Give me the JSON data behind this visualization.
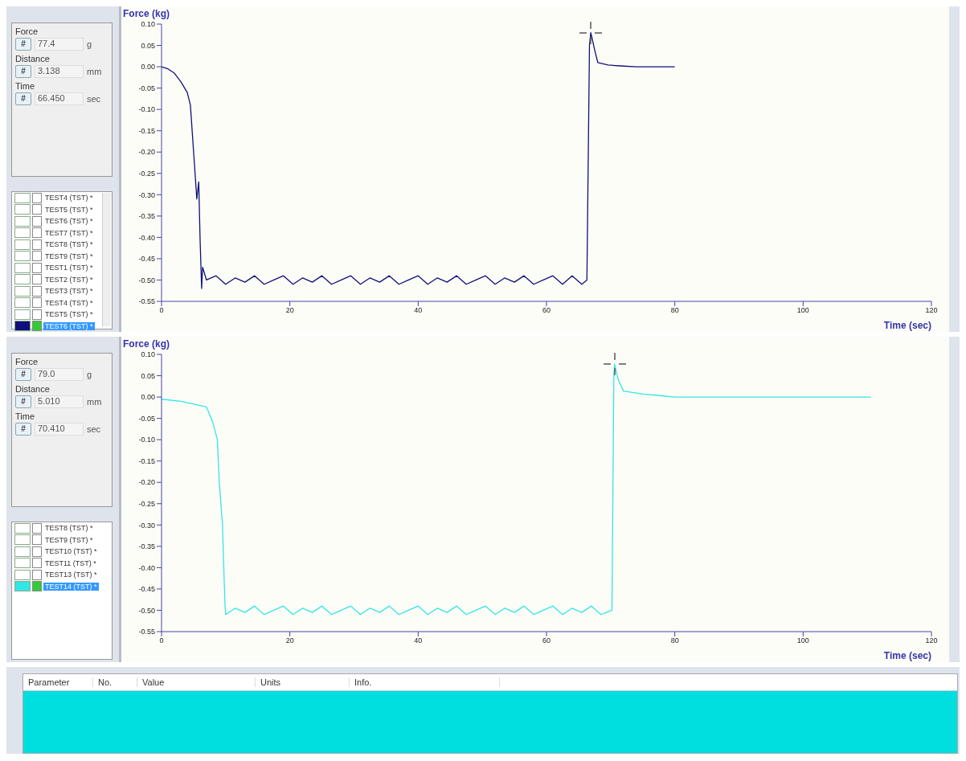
{
  "chart_data": [
    {
      "type": "line",
      "ylabel": "Force (kg)",
      "xlabel": "Time (sec)",
      "xlim": [
        0,
        120
      ],
      "xticks": [
        0,
        20,
        40,
        60,
        80,
        100,
        120
      ],
      "ylim": [
        -0.55,
        0.1
      ],
      "yticks": [
        {
          "value": 0.1,
          "label": "0.10"
        },
        0.05,
        {
          "value": 0,
          "label": "0.00"
        },
        -0.05,
        {
          "value": -0.1,
          "label": "-0.10"
        },
        -0.15,
        {
          "value": -0.2,
          "label": "-0.20"
        },
        -0.25,
        {
          "value": -0.3,
          "label": "-0.30"
        },
        -0.35,
        {
          "value": -0.4,
          "label": "-0.40"
        },
        -0.45,
        {
          "value": -0.5,
          "label": "-0.50"
        },
        -0.55
      ],
      "annotations": [
        "Force",
        "#",
        "77.4",
        "g",
        "Distance",
        "#",
        "3.138",
        "mm",
        "Time",
        "#",
        "66.450",
        "sec",
        "TEST4 (TST) *",
        "TEST5 (TST) *",
        "TEST6 (TST) *",
        "TEST7 (TST) *",
        "TEST8 (TST) *",
        "TEST9 (TST) *",
        "TEST1 (TST) *",
        "TEST2 (TST) *",
        "TEST3 (TST) *",
        "TEST4 (TST) *",
        "TEST5 (TST) *",
        "TEST6 (TST) *"
      ],
      "x": [
        0,
        1,
        2,
        3,
        4,
        4.5,
        5,
        5.5,
        5.8,
        6,
        6.25,
        6.4,
        7,
        8.5,
        10,
        11.5,
        13,
        14.5,
        16,
        17.5,
        19,
        20.5,
        22,
        23.5,
        25,
        26.5,
        28,
        29.5,
        31,
        32.5,
        34,
        35.5,
        37,
        38.5,
        40,
        41.5,
        43,
        44.5,
        46,
        47.5,
        49,
        50.5,
        52,
        53.5,
        55,
        56.5,
        58,
        59.5,
        61,
        62.5,
        64,
        65.5,
        66.3,
        66.7,
        66.9,
        67.1,
        67.5,
        68,
        69.6,
        71.5,
        74,
        80
      ],
      "series": [
        {
          "color": "#10107a",
          "values": [
            0,
            -0.005,
            -0.015,
            -0.035,
            -0.06,
            -0.09,
            -0.2,
            -0.31,
            -0.27,
            -0.4,
            -0.52,
            -0.47,
            -0.5,
            -0.49,
            -0.51,
            -0.495,
            -0.505,
            -0.49,
            -0.51,
            -0.5,
            -0.49,
            -0.51,
            -0.495,
            -0.505,
            -0.49,
            -0.51,
            -0.5,
            -0.49,
            -0.51,
            -0.495,
            -0.505,
            -0.49,
            -0.51,
            -0.5,
            -0.49,
            -0.51,
            -0.495,
            -0.505,
            -0.49,
            -0.51,
            -0.5,
            -0.49,
            -0.51,
            -0.495,
            -0.505,
            -0.49,
            -0.51,
            -0.5,
            -0.49,
            -0.51,
            -0.49,
            -0.51,
            -0.5,
            0.05,
            0.08,
            0.067,
            0.04,
            0.01,
            0.004,
            0.002,
            0,
            0
          ]
        }
      ]
    },
    {
      "type": "line",
      "ylabel": "Force (kg)",
      "xlabel": "Time (sec)",
      "xlim": [
        0,
        120
      ],
      "xticks": [
        0,
        20,
        40,
        60,
        80,
        100,
        120
      ],
      "ylim": [
        -0.55,
        0.1
      ],
      "yticks": [
        {
          "value": 0.1,
          "label": "0.10"
        },
        0.05,
        {
          "value": 0,
          "label": "0.00"
        },
        -0.05,
        {
          "value": -0.1,
          "label": "-0.10"
        },
        -0.15,
        {
          "value": -0.2,
          "label": "-0.20"
        },
        -0.25,
        {
          "value": -0.3,
          "label": "-0.30"
        },
        -0.35,
        {
          "value": -0.4,
          "label": "-0.40"
        },
        -0.45,
        {
          "value": -0.5,
          "label": "-0.50"
        },
        -0.55
      ],
      "annotations": [
        "Force",
        "#",
        "79.0",
        "g",
        "Distance",
        "#",
        "5.010",
        "mm",
        "Time",
        "#",
        "70.410",
        "sec",
        "TEST8 (TST) *",
        "TEST9 (TST) *",
        "TEST10 (TST) *",
        "TEST11 (TST) *",
        "TEST13 (TST) *",
        "TEST14 (TST) *"
      ],
      "x": [
        0,
        3,
        6,
        7,
        8,
        8.7,
        9,
        9.5,
        9.7,
        9.9,
        10,
        11.5,
        13,
        14.5,
        16,
        17.5,
        19,
        20.5,
        22,
        23.5,
        25,
        26.5,
        28,
        29.5,
        31,
        32.5,
        34,
        35.5,
        37,
        38.5,
        40,
        41.5,
        43,
        44.5,
        46,
        47.5,
        49,
        50.5,
        52,
        53.5,
        55,
        56.5,
        58,
        59.5,
        61,
        62.5,
        64,
        65.5,
        67,
        68.5,
        70.2,
        70.5,
        70.6,
        71.2,
        72,
        75,
        78,
        80,
        105,
        110.6
      ],
      "series": [
        {
          "color": "#33e6e6",
          "values": [
            -0.005,
            -0.01,
            -0.02,
            -0.023,
            -0.06,
            -0.1,
            -0.2,
            -0.3,
            -0.4,
            -0.49,
            -0.51,
            -0.495,
            -0.505,
            -0.49,
            -0.51,
            -0.5,
            -0.49,
            -0.51,
            -0.495,
            -0.505,
            -0.49,
            -0.51,
            -0.5,
            -0.49,
            -0.51,
            -0.495,
            -0.505,
            -0.49,
            -0.51,
            -0.5,
            -0.49,
            -0.51,
            -0.495,
            -0.505,
            -0.49,
            -0.51,
            -0.5,
            -0.49,
            -0.51,
            -0.495,
            -0.505,
            -0.49,
            -0.51,
            -0.5,
            -0.49,
            -0.51,
            -0.495,
            -0.505,
            -0.49,
            -0.51,
            -0.5,
            0.05,
            0.077,
            0.04,
            0.014,
            0.007,
            0.003,
            0,
            0,
            0
          ]
        }
      ]
    },
    {
      "type": "other",
      "annotations": [
        "Parameter",
        "No.",
        "Value",
        "Units",
        "Info."
      ]
    }
  ]
}
